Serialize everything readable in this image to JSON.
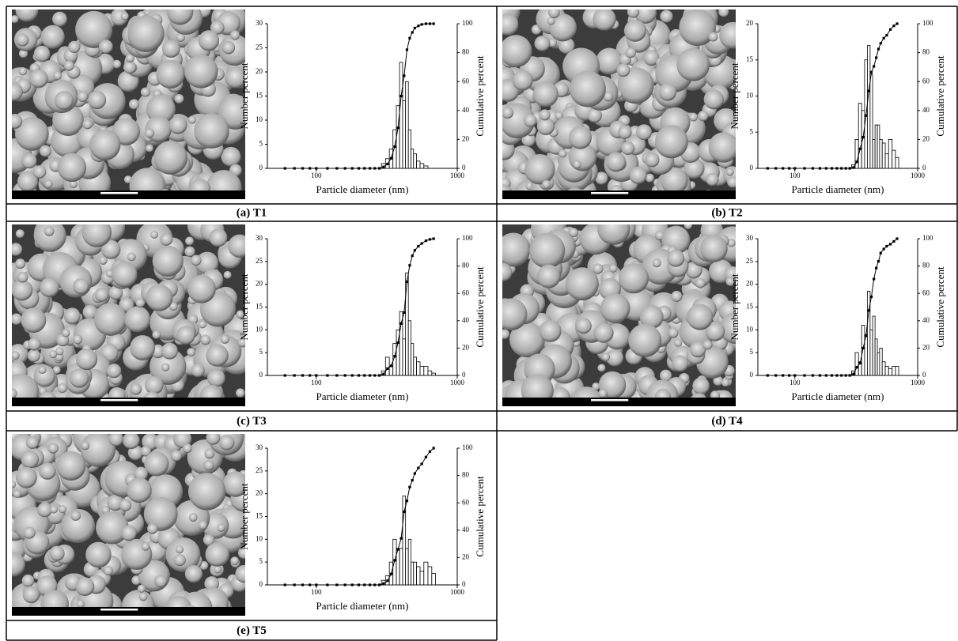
{
  "chart_data": [
    {
      "type": "bar",
      "caption": "(a) T1",
      "x_label": "Particle diameter (nm)",
      "y_label": "Number percent",
      "y2_label": "Cumulative percent",
      "log_x": true,
      "x": [
        60,
        70,
        80,
        90,
        100,
        120,
        140,
        160,
        180,
        200,
        220,
        240,
        260,
        280,
        300,
        320,
        340,
        360,
        380,
        400,
        420,
        440,
        460,
        480,
        500,
        530,
        560,
        600,
        640,
        680
      ],
      "series": [
        {
          "color": "#ffffff",
          "values": [
            0,
            0,
            0,
            0,
            0,
            0,
            0,
            0,
            0,
            0,
            0,
            0,
            0,
            0,
            1,
            2,
            4,
            8,
            13,
            22,
            14,
            18,
            8,
            4,
            3,
            1.5,
            1,
            0.5,
            0,
            0
          ]
        },
        {
          "color": "#000000",
          "axis": "y2",
          "values": [
            0,
            0,
            0,
            0,
            0,
            0,
            0,
            0,
            0,
            0,
            0,
            0,
            0,
            0,
            1,
            3,
            7,
            15,
            28,
            50,
            64,
            82,
            90,
            94,
            97,
            98.5,
            99.5,
            100,
            100,
            100
          ]
        }
      ],
      "xlim": [
        45,
        1000
      ],
      "xticks": [
        100,
        1000
      ],
      "ylim": [
        0,
        30
      ],
      "yticks": [
        0,
        5,
        10,
        15,
        20,
        25,
        30
      ],
      "y2lim": [
        0,
        100
      ],
      "y2ticks": [
        0,
        20,
        40,
        60,
        80,
        100
      ]
    },
    {
      "type": "bar",
      "caption": "(b) T2",
      "x_label": "Particle diameter (nm)",
      "y_label": "Number percent",
      "y2_label": "Cumulative percent",
      "log_x": true,
      "x": [
        60,
        70,
        80,
        90,
        100,
        120,
        140,
        160,
        180,
        200,
        220,
        240,
        260,
        280,
        300,
        320,
        340,
        360,
        380,
        400,
        420,
        440,
        460,
        480,
        500,
        530,
        560,
        600,
        640,
        680
      ],
      "series": [
        {
          "color": "#ffffff",
          "values": [
            0,
            0,
            0,
            0,
            0,
            0,
            0,
            0,
            0,
            0,
            0,
            0,
            0,
            0,
            0.5,
            4,
            9,
            8,
            15,
            17,
            13,
            4,
            6,
            6,
            4,
            3.5,
            2,
            4,
            2.5,
            1.5
          ]
        },
        {
          "color": "#000000",
          "axis": "y2",
          "values": [
            0,
            0,
            0,
            0,
            0,
            0,
            0,
            0,
            0,
            0,
            0,
            0,
            0,
            0,
            0.5,
            4.5,
            13.5,
            21.5,
            36.5,
            53.5,
            66.5,
            70.5,
            76.5,
            82.5,
            86.5,
            90,
            92,
            96,
            98.5,
            100
          ]
        }
      ],
      "xlim": [
        50,
        1000
      ],
      "xticks": [
        100,
        1000
      ],
      "ylim": [
        0,
        20
      ],
      "yticks": [
        0,
        5,
        10,
        15,
        20
      ],
      "y2lim": [
        0,
        100
      ],
      "y2ticks": [
        0,
        20,
        40,
        60,
        80,
        100
      ]
    },
    {
      "type": "bar",
      "caption": "(c) T3",
      "x_label": "Particle diameter (nm)",
      "y_label": "Number percent",
      "y2_label": "Cumulative percent",
      "log_x": true,
      "x": [
        60,
        70,
        80,
        90,
        100,
        120,
        140,
        160,
        180,
        200,
        220,
        240,
        260,
        280,
        300,
        320,
        340,
        360,
        380,
        400,
        420,
        440,
        460,
        480,
        500,
        530,
        560,
        600,
        640,
        680
      ],
      "series": [
        {
          "color": "#ffffff",
          "values": [
            0,
            0,
            0,
            0,
            0,
            0,
            0,
            0,
            0,
            0,
            0,
            0,
            0,
            0,
            1,
            4,
            2,
            7,
            10,
            14,
            8,
            22.5,
            12,
            7,
            4,
            3,
            2,
            2,
            1,
            0.5
          ]
        },
        {
          "color": "#000000",
          "axis": "y2",
          "values": [
            0,
            0,
            0,
            0,
            0,
            0,
            0,
            0,
            0,
            0,
            0,
            0,
            0,
            0,
            1,
            5,
            7,
            14,
            24,
            38,
            46,
            68.5,
            80.5,
            87.5,
            91.5,
            94.5,
            96.5,
            98.5,
            99.5,
            100
          ]
        }
      ],
      "xlim": [
        45,
        1000
      ],
      "xticks": [
        100,
        1000
      ],
      "ylim": [
        0,
        30
      ],
      "yticks": [
        0,
        5,
        10,
        15,
        20,
        25,
        30
      ],
      "y2lim": [
        0,
        100
      ],
      "y2ticks": [
        0,
        20,
        40,
        60,
        80,
        100
      ]
    },
    {
      "type": "bar",
      "caption": "(d) T4",
      "x_label": "Particle diameter (nm)",
      "y_label": "Number percent",
      "y2_label": "Cumulative percent",
      "log_x": true,
      "x": [
        60,
        70,
        80,
        90,
        100,
        120,
        140,
        160,
        180,
        200,
        220,
        240,
        260,
        280,
        300,
        320,
        340,
        360,
        380,
        400,
        420,
        440,
        460,
        480,
        500,
        530,
        560,
        600,
        640,
        680
      ],
      "series": [
        {
          "color": "#ffffff",
          "values": [
            0,
            0,
            0,
            0,
            0,
            0,
            0,
            0,
            0,
            0,
            0,
            0,
            0,
            0,
            1,
            5,
            3,
            11,
            9,
            18.5,
            10,
            13,
            8,
            5,
            6,
            3,
            2,
            1.5,
            2,
            2
          ]
        },
        {
          "color": "#000000",
          "axis": "y2",
          "values": [
            0,
            0,
            0,
            0,
            0,
            0,
            0,
            0,
            0,
            0,
            0,
            0,
            0,
            0,
            1,
            6,
            9,
            20,
            29,
            47.5,
            57.5,
            70.5,
            78.5,
            83.5,
            89.5,
            92.5,
            94.5,
            96,
            98,
            100
          ]
        }
      ],
      "xlim": [
        50,
        1000
      ],
      "xticks": [
        100,
        1000
      ],
      "ylim": [
        0,
        30
      ],
      "yticks": [
        0,
        5,
        10,
        15,
        20,
        25,
        30
      ],
      "y2lim": [
        0,
        100
      ],
      "y2ticks": [
        0,
        20,
        40,
        60,
        80,
        100
      ]
    },
    {
      "type": "bar",
      "caption": "(e) T5",
      "x_label": "Particle diameter (nm)",
      "y_label": "Number percent",
      "y2_label": "Cumulative percent",
      "log_x": true,
      "x": [
        60,
        70,
        80,
        90,
        100,
        120,
        140,
        160,
        180,
        200,
        220,
        240,
        260,
        280,
        300,
        320,
        340,
        360,
        380,
        400,
        420,
        440,
        460,
        480,
        500,
        530,
        560,
        600,
        640,
        680
      ],
      "series": [
        {
          "color": "#ffffff",
          "values": [
            0,
            0,
            0,
            0,
            0,
            0,
            0,
            0,
            0,
            0,
            0,
            0,
            0,
            0,
            1,
            2,
            5,
            10,
            8,
            8,
            19.5,
            8,
            10,
            5,
            5,
            4,
            3,
            5,
            4,
            2.5
          ]
        },
        {
          "color": "#000000",
          "axis": "y2",
          "values": [
            0,
            0,
            0,
            0,
            0,
            0,
            0,
            0,
            0,
            0,
            0,
            0,
            0,
            0,
            1,
            3,
            8,
            18,
            26,
            34,
            53.5,
            61.5,
            71.5,
            76.5,
            81.5,
            85.5,
            88.5,
            93.5,
            97.5,
            100
          ]
        }
      ],
      "xlim": [
        45,
        1000
      ],
      "xticks": [
        100,
        1000
      ],
      "ylim": [
        0,
        30
      ],
      "yticks": [
        0,
        5,
        10,
        15,
        20,
        25,
        30
      ],
      "y2lim": [
        0,
        100
      ],
      "y2ticks": [
        0,
        20,
        40,
        60,
        80,
        100
      ]
    }
  ]
}
